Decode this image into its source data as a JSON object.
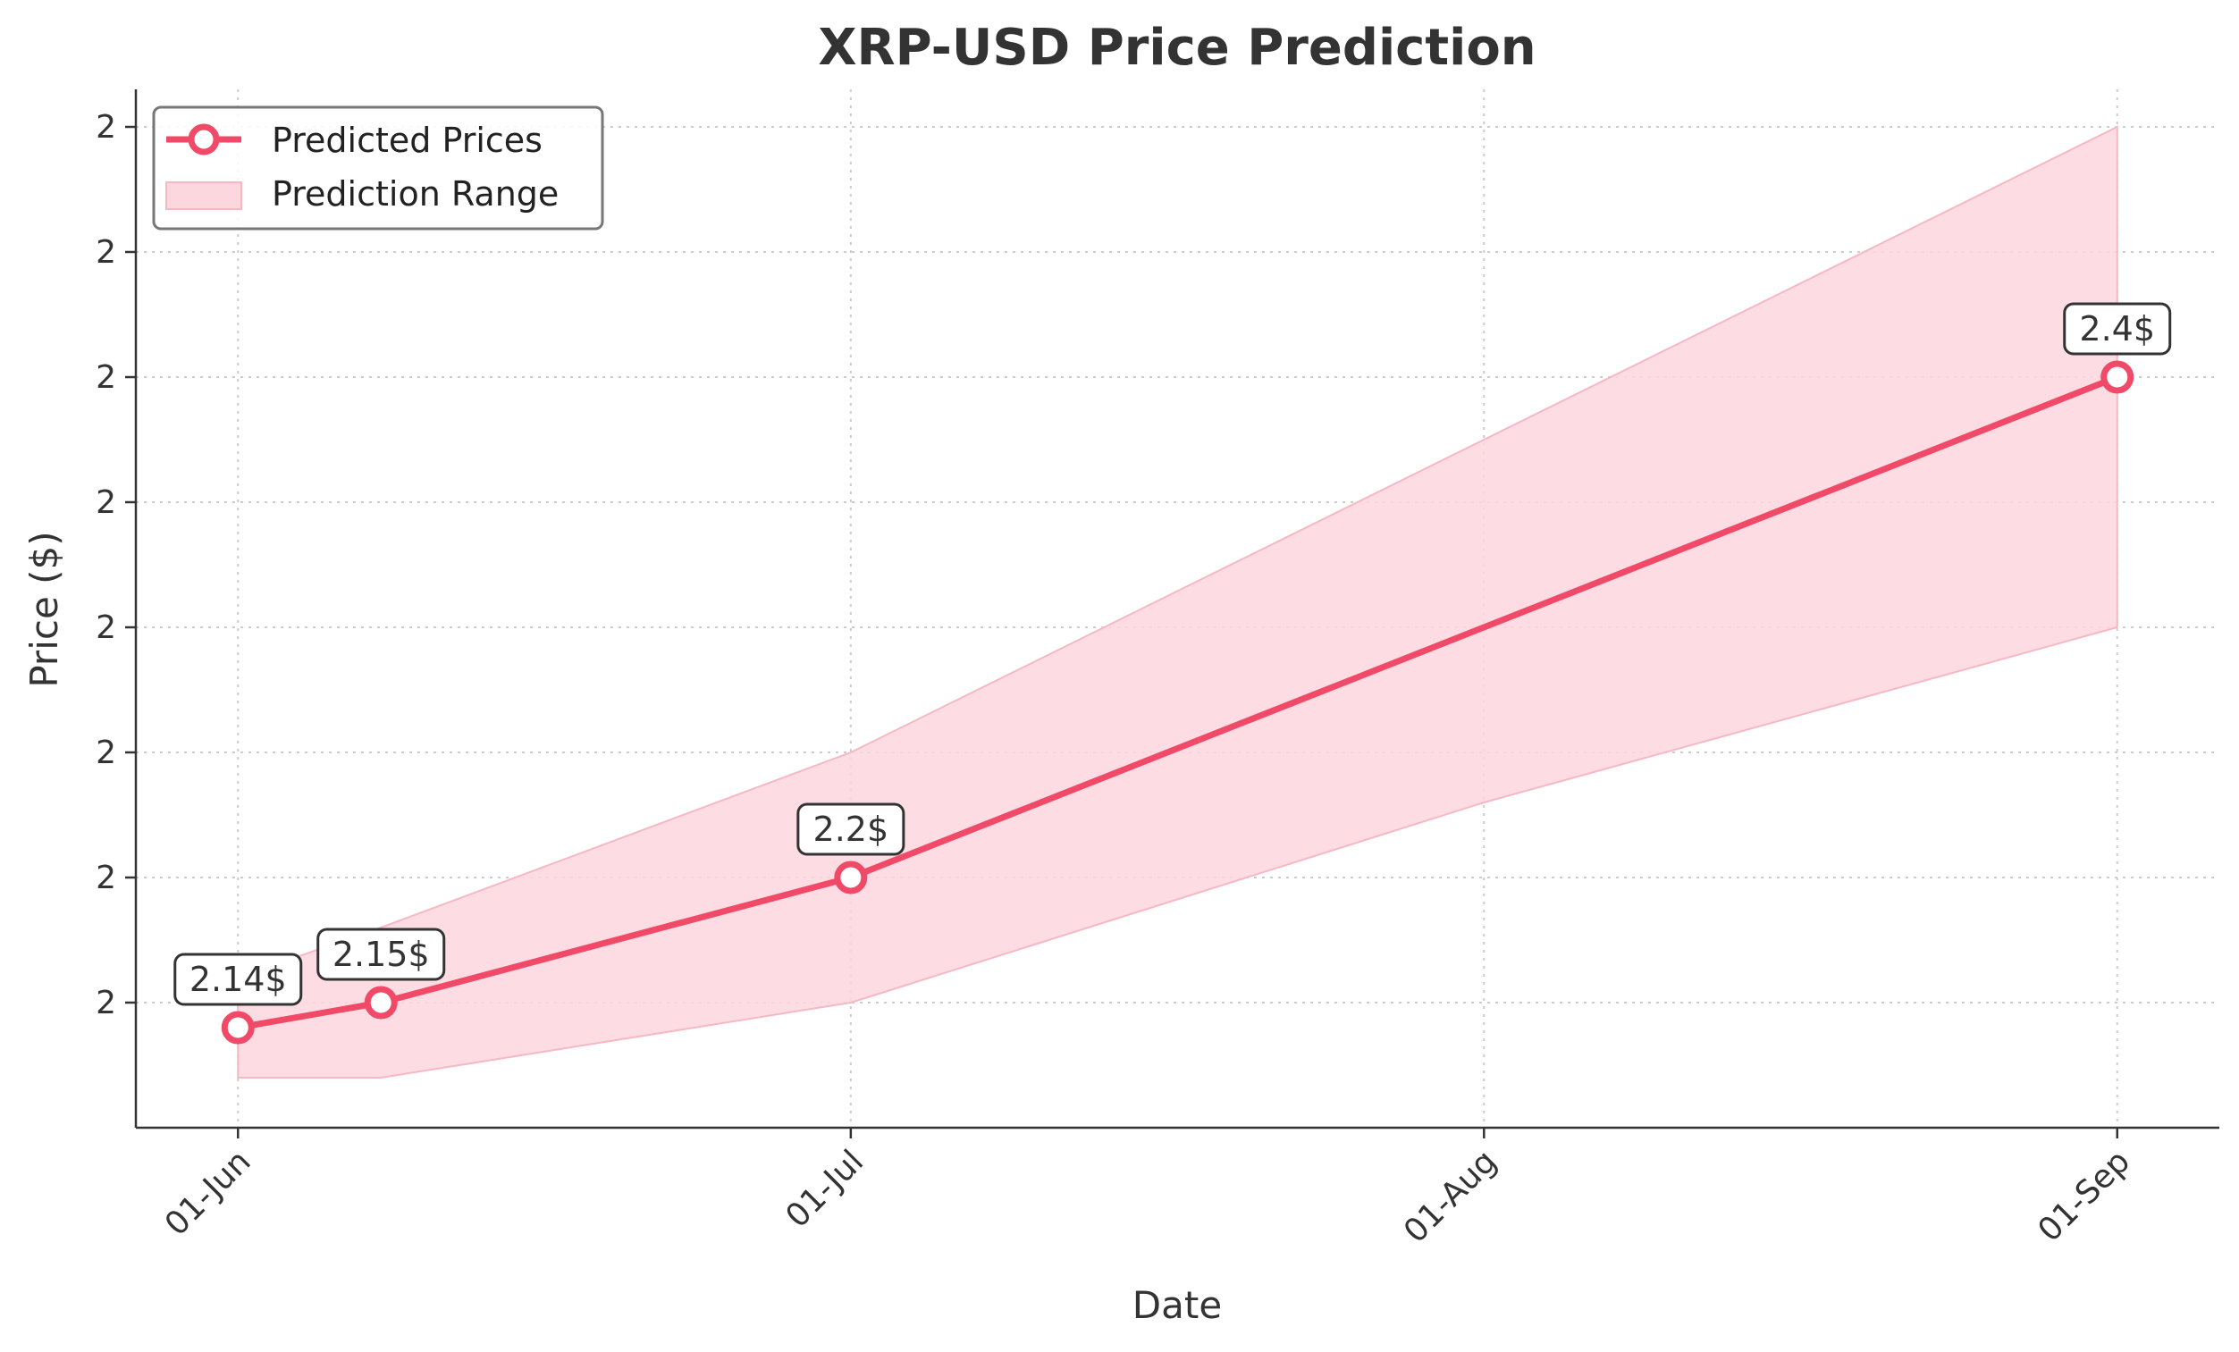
{
  "chart_data": {
    "type": "line",
    "title": "XRP-USD Price Prediction",
    "xlabel": "Date",
    "ylabel": "Price ($)",
    "x_tick_labels": [
      "01-Jun",
      "01-Jul",
      "01-Aug",
      "01-Sep"
    ],
    "x_tick_dates": [
      "2025-06-01",
      "2025-07-01",
      "2025-08-01",
      "2025-09-01"
    ],
    "x_range": [
      "2025-05-27",
      "2025-09-06"
    ],
    "y_tick_labels": [
      "2",
      "2",
      "2",
      "2",
      "2",
      "2",
      "2",
      "2"
    ],
    "y_tick_values": [
      2.15,
      2.2,
      2.25,
      2.3,
      2.35,
      2.4,
      2.45,
      2.5
    ],
    "ylim": [
      2.1,
      2.515
    ],
    "grid": true,
    "legend_position": "top-left",
    "colors": {
      "line": "#f04a68",
      "band": "#fdd7de",
      "band_edge": "#f6b8c3",
      "marker_fill": "#ffffff"
    },
    "series": [
      {
        "name": "Predicted Prices",
        "kind": "line",
        "points": [
          {
            "date": "2025-06-01",
            "value": 2.14,
            "label": "2.14$"
          },
          {
            "date": "2025-06-08",
            "value": 2.15,
            "label": "2.15$"
          },
          {
            "date": "2025-07-01",
            "value": 2.2,
            "label": "2.2$"
          },
          {
            "date": "2025-09-01",
            "value": 2.4,
            "label": "2.4$"
          }
        ]
      },
      {
        "name": "Prediction Range",
        "kind": "band",
        "points": [
          {
            "date": "2025-06-01",
            "low": 2.12,
            "high": 2.16
          },
          {
            "date": "2025-06-08",
            "low": 2.12,
            "high": 2.18
          },
          {
            "date": "2025-07-01",
            "low": 2.15,
            "high": 2.25
          },
          {
            "date": "2025-08-01",
            "low": 2.23,
            "high": 2.375
          },
          {
            "date": "2025-09-01",
            "low": 2.3,
            "high": 2.5
          }
        ]
      }
    ]
  }
}
